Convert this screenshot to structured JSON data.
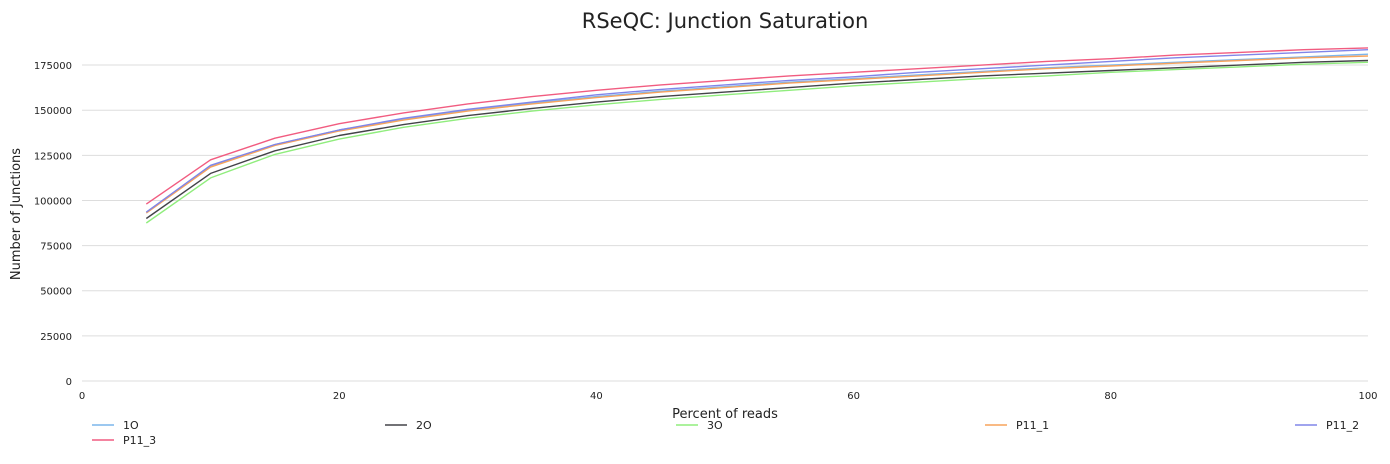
{
  "chart_data": {
    "type": "line",
    "title": "RSeQC: Junction Saturation",
    "xlabel": "Percent of reads",
    "ylabel": "Number of Junctions",
    "xlim": [
      0,
      100
    ],
    "ylim": [
      0,
      185000
    ],
    "x_ticks": [
      0,
      20,
      40,
      60,
      80,
      100
    ],
    "y_ticks": [
      0,
      25000,
      50000,
      75000,
      100000,
      125000,
      150000,
      175000
    ],
    "grid": true,
    "legend_position": "bottom",
    "x": [
      5,
      10,
      15,
      20,
      25,
      30,
      35,
      40,
      45,
      50,
      55,
      60,
      65,
      70,
      75,
      80,
      85,
      90,
      95,
      100
    ],
    "series": [
      {
        "name": "1O",
        "color": "#7cb5ec",
        "values": [
          93500,
          119000,
          131000,
          139000,
          145000,
          150000,
          154000,
          157500,
          160500,
          163000,
          165500,
          167500,
          169500,
          171500,
          173500,
          175000,
          176500,
          178000,
          179500,
          181000
        ]
      },
      {
        "name": "2O",
        "color": "#434348",
        "values": [
          90000,
          115000,
          127500,
          136000,
          142000,
          147000,
          151000,
          154500,
          157500,
          160000,
          162500,
          165000,
          167000,
          169000,
          170500,
          172000,
          173500,
          175000,
          176500,
          177500
        ]
      },
      {
        "name": "3O",
        "color": "#90ed7d",
        "values": [
          87500,
          112500,
          125500,
          134000,
          140500,
          145500,
          149500,
          153000,
          156000,
          158500,
          161000,
          163500,
          165500,
          167500,
          169000,
          171000,
          172500,
          174000,
          175500,
          176500
        ]
      },
      {
        "name": "P11_1",
        "color": "#f7a35c",
        "values": [
          93000,
          118500,
          130500,
          138500,
          144500,
          149500,
          153500,
          157000,
          160000,
          162500,
          165000,
          167000,
          169000,
          171000,
          173000,
          174500,
          176000,
          177500,
          179000,
          180000
        ]
      },
      {
        "name": "P11_2",
        "color": "#8085e9",
        "values": [
          93500,
          119500,
          131000,
          139000,
          145500,
          150500,
          154500,
          158500,
          161500,
          164000,
          166500,
          168500,
          171000,
          173000,
          175000,
          177000,
          179000,
          180500,
          182000,
          183500
        ]
      },
      {
        "name": "P11_3",
        "color": "#f15c80",
        "values": [
          98000,
          122500,
          134500,
          142500,
          148500,
          153500,
          157500,
          161000,
          164000,
          166500,
          169000,
          171000,
          173000,
          175000,
          177000,
          178500,
          180500,
          182000,
          183500,
          184500
        ]
      }
    ]
  }
}
